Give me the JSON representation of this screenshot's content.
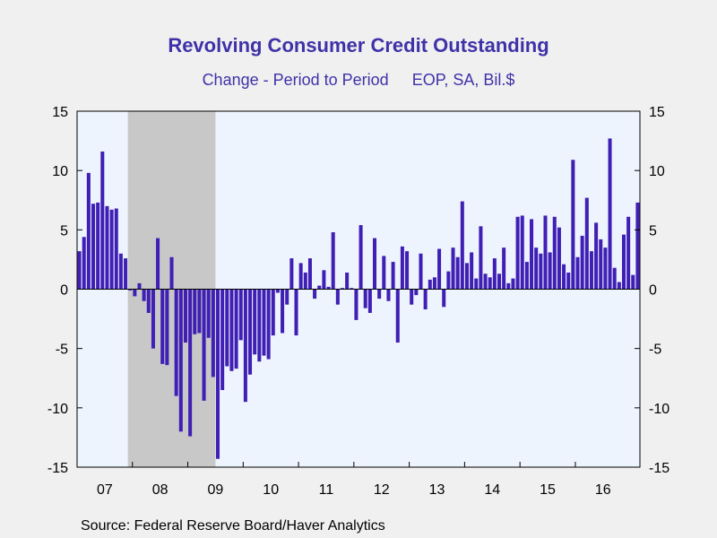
{
  "header": {
    "title": "Revolving Consumer Credit Outstanding",
    "subtitle_left": "Change - Period to Period",
    "subtitle_right": "EOP, SA, Bil.$"
  },
  "footer": {
    "source": "Source:  Federal Reserve Board/Haver Analytics"
  },
  "colors": {
    "bar": "#3f1fb4",
    "plot_background": "#eef4fe",
    "recession_shading": "#c8c8c8",
    "page_background": "#f0f0f0",
    "title": "#3f32a8"
  },
  "chart_data": {
    "type": "bar",
    "title": "Revolving Consumer Credit Outstanding",
    "subtitle": "Change - Period to Period    EOP, SA, Bil.$",
    "xlabel": "",
    "ylabel": "",
    "ylim": [
      -15,
      15
    ],
    "y_ticks": [
      15,
      10,
      5,
      0,
      -5,
      -10,
      -15
    ],
    "y_axis_both_sides": true,
    "x_tick_labels": [
      "07",
      "08",
      "09",
      "10",
      "11",
      "12",
      "13",
      "14",
      "15",
      "16"
    ],
    "x_start": "2007-01",
    "frequency": "monthly",
    "recession_shading": {
      "start": "2007-12",
      "end": "2009-06"
    },
    "grid": false,
    "legend": "none",
    "values": [
      3.2,
      4.4,
      9.8,
      7.2,
      7.3,
      11.6,
      7.0,
      6.7,
      6.8,
      3.0,
      2.6,
      -0.1,
      -0.6,
      0.5,
      -1.0,
      -2.0,
      -5.0,
      4.3,
      -6.3,
      -6.4,
      2.7,
      -9.0,
      -12.0,
      -4.5,
      -12.4,
      -3.8,
      -3.7,
      -9.4,
      -4.1,
      -7.4,
      -14.3,
      -8.5,
      -6.5,
      -6.9,
      -6.7,
      -4.3,
      -9.5,
      -7.2,
      -5.5,
      -6.1,
      -5.6,
      -5.9,
      -3.9,
      -0.3,
      -3.7,
      -1.3,
      2.6,
      -3.9,
      2.2,
      1.4,
      2.6,
      -0.8,
      0.3,
      1.6,
      0.2,
      4.8,
      -1.3,
      0.1,
      1.4,
      0.1,
      -2.6,
      5.4,
      -1.6,
      -2.0,
      4.3,
      -0.8,
      2.8,
      -1.0,
      2.3,
      -4.5,
      3.6,
      3.2,
      -1.3,
      -0.5,
      3.0,
      -1.7,
      0.8,
      1.0,
      3.4,
      -1.5,
      1.5,
      3.5,
      2.7,
      7.4,
      2.2,
      3.1,
      0.9,
      5.3,
      1.3,
      1.0,
      2.6,
      1.3,
      3.5,
      0.5,
      0.9,
      6.1,
      6.2,
      2.3,
      5.9,
      3.5,
      3.0,
      6.2,
      3.1,
      6.1,
      5.2,
      2.1,
      1.4,
      10.9,
      2.7,
      4.5,
      7.7,
      3.2,
      5.6,
      4.2,
      3.5,
      12.7,
      1.8,
      0.6,
      4.6,
      6.1,
      1.2,
      7.3
    ]
  }
}
